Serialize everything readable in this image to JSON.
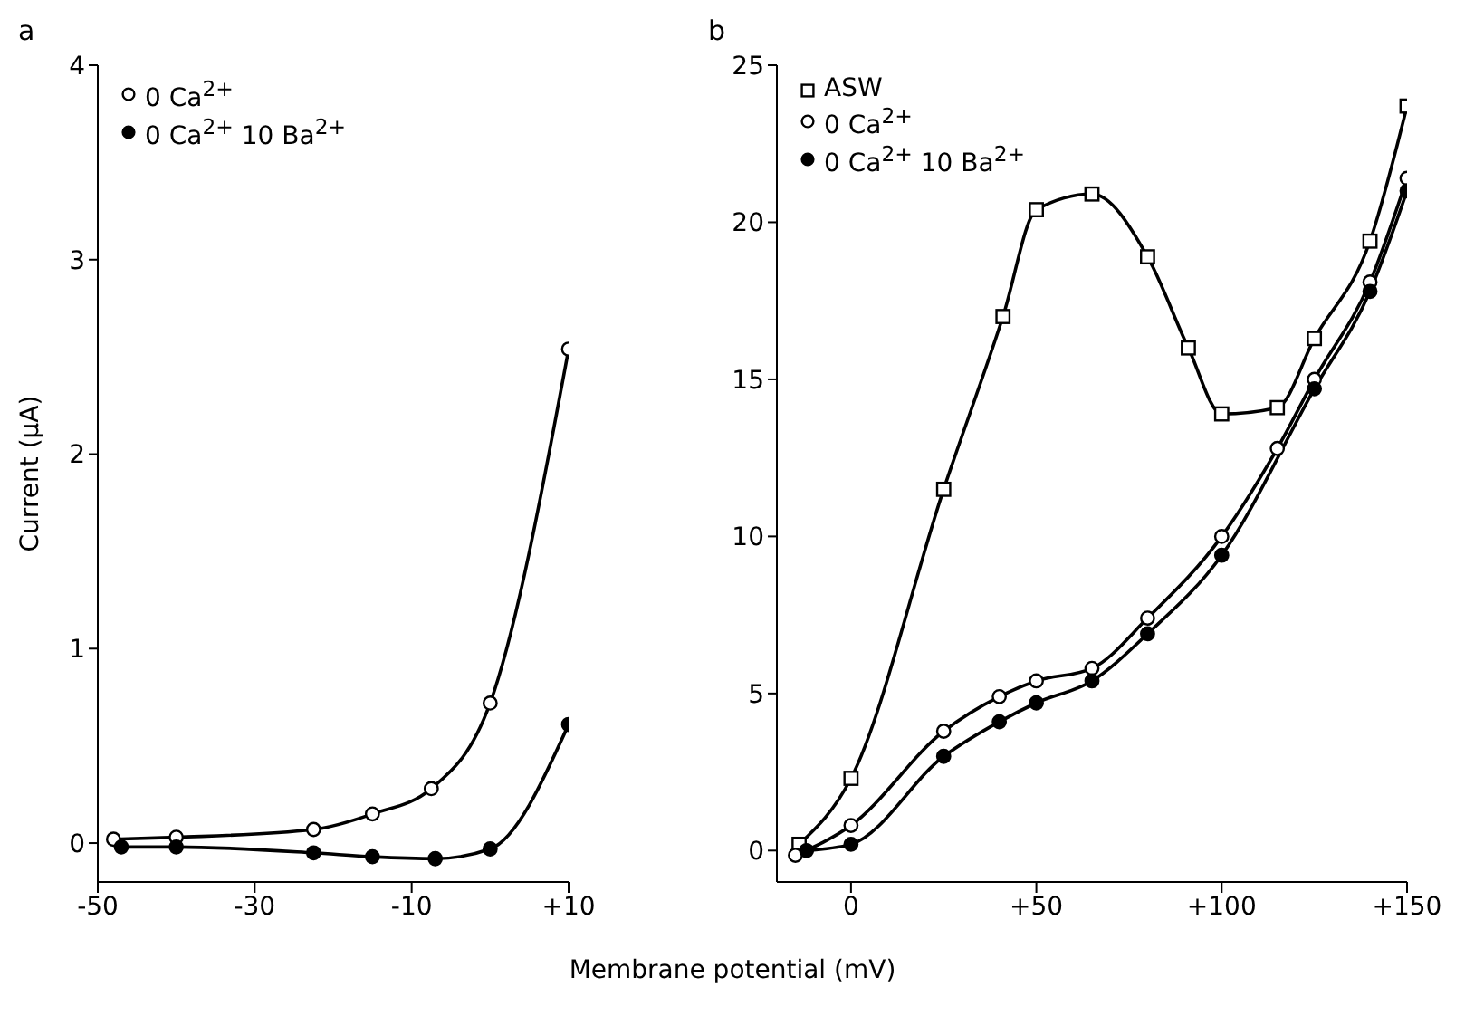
{
  "chart_data": [
    {
      "type": "line",
      "title": "a",
      "xlabel": "Membrane potential (mV)",
      "ylabel": "Current (μA)",
      "xlim": [
        -50,
        10
      ],
      "xticks": [
        -50,
        -30,
        -10,
        {
          "value": 10,
          "label": "+10"
        }
      ],
      "ylim": [
        -0.2,
        4
      ],
      "yticks": [
        0,
        1,
        2,
        3,
        4
      ],
      "legend": "top left",
      "series": [
        {
          "name": "0 Ca$^{2+}$",
          "color": "#000000",
          "marker": "circle",
          "x": [
            -48,
            -40,
            -22.5,
            -15,
            -7.5,
            0,
            10
          ],
          "values": [
            0.02,
            0.03,
            0.07,
            0.15,
            0.28,
            0.72,
            2.54
          ]
        },
        {
          "name": "0 Ca$^{2+}$ 10 Ba$^{2+}$",
          "color": "#000000",
          "marker": "circle",
          "x": [
            -47,
            -40,
            -22.5,
            -15,
            -7,
            0,
            10
          ],
          "values": [
            -0.02,
            -0.02,
            -0.05,
            -0.07,
            -0.08,
            -0.03,
            0.61
          ]
        }
      ]
    },
    {
      "type": "line",
      "title": "b",
      "xlim": [
        -20,
        150
      ],
      "xticks": [
        0,
        {
          "value": 50,
          "label": "+50"
        },
        {
          "value": 100,
          "label": "+100"
        },
        {
          "value": 150,
          "label": "+150"
        }
      ],
      "ylim": [
        -1,
        25
      ],
      "yticks": [
        0,
        5,
        10,
        15,
        20,
        25
      ],
      "legend": "top left",
      "series": [
        {
          "name": "ASW",
          "color": "#000000",
          "marker": "square",
          "x": [
            -14,
            0,
            25,
            41,
            50,
            65,
            80,
            91,
            100,
            115,
            125,
            140,
            150
          ],
          "values": [
            0.2,
            2.3,
            11.5,
            17,
            20.4,
            20.9,
            18.9,
            16,
            13.9,
            14.1,
            16.3,
            19.4,
            23.7
          ]
        },
        {
          "name": "0 Ca$^{2+}$",
          "color": "#000000",
          "marker": "circle",
          "x": [
            -15,
            0,
            25,
            40,
            50,
            65,
            80,
            100,
            115,
            125,
            140,
            150
          ],
          "values": [
            -0.15,
            0.8,
            3.8,
            4.9,
            5.4,
            5.8,
            7.4,
            10,
            12.8,
            15,
            18.1,
            21.4
          ]
        },
        {
          "name": "0 Ca$^{2+}$ 10 Ba$^{2+}$",
          "color": "#000000",
          "marker": "circle",
          "x": [
            -12,
            0,
            25,
            40,
            50,
            65,
            80,
            100,
            125,
            140,
            150
          ],
          "values": [
            0,
            0.2,
            3,
            4.1,
            4.7,
            5.4,
            6.9,
            9.4,
            14.7,
            17.8,
            21
          ]
        }
      ]
    }
  ]
}
